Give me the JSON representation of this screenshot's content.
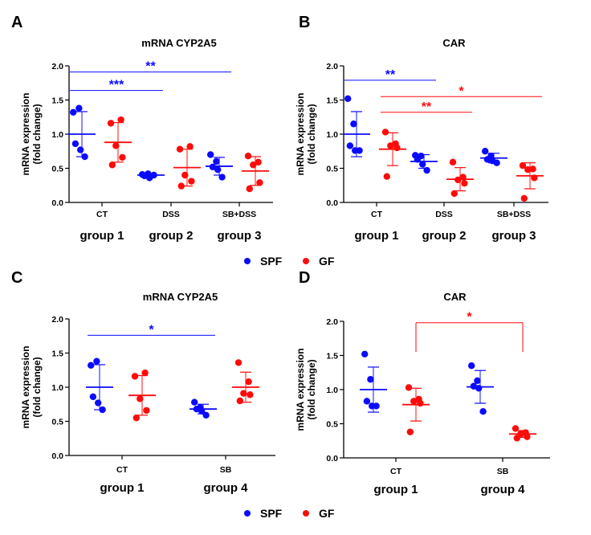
{
  "legend": {
    "items": [
      {
        "label": "SPF",
        "color": "#0a0aff"
      },
      {
        "label": "GF",
        "color": "#ff0a0a"
      }
    ]
  },
  "chart_data": [
    {
      "panel": "A",
      "type": "scatter",
      "title": "mRNA CYP2A5",
      "ylabel": [
        "mRNA expression",
        "(fold change)"
      ],
      "ylim": [
        0,
        2.0
      ],
      "yticks": [
        "0.0",
        "0.5",
        "1.0",
        "1.5",
        "2.0"
      ],
      "categories": [
        "CT",
        "DSS",
        "SB+DSS"
      ],
      "groups": [
        "group 1",
        "group 2",
        "group 3"
      ],
      "series": [
        {
          "name": "SPF",
          "color": "#0a0aff",
          "points": [
            [
              1.32,
              1.38,
              0.86,
              0.77,
              0.67
            ],
            [
              0.41,
              0.42,
              0.39,
              0.36,
              0.4
            ],
            [
              0.7,
              0.6,
              0.52,
              0.48,
              0.37
            ]
          ],
          "mean": [
            1.0,
            0.4,
            0.53
          ],
          "sd": [
            0.33,
            0.02,
            0.13
          ]
        },
        {
          "name": "GF",
          "color": "#ff0a0a",
          "points": [
            [
              1.16,
              1.21,
              0.83,
              0.66,
              0.55
            ],
            [
              0.78,
              0.82,
              0.4,
              0.31,
              0.24
            ],
            [
              0.68,
              0.59,
              0.55,
              0.29,
              0.2
            ]
          ],
          "mean": [
            0.88,
            0.51,
            0.46
          ],
          "sd": [
            0.29,
            0.27,
            0.21
          ]
        }
      ],
      "significance": [
        {
          "label": "**",
          "from": [
            0,
            "SPF"
          ],
          "to": [
            2,
            "SPF"
          ],
          "y": 1.91,
          "color": "#0a0aff"
        },
        {
          "label": "***",
          "from": [
            0,
            "SPF"
          ],
          "to": [
            1,
            "SPF"
          ],
          "y": 1.64,
          "color": "#0a0aff"
        }
      ]
    },
    {
      "panel": "B",
      "type": "scatter",
      "title": "CAR",
      "ylabel": [
        "mRNA expression",
        "(fold change)"
      ],
      "ylim": [
        0,
        2.0
      ],
      "yticks": [
        "0.0",
        "0.5",
        "1.0",
        "1.5",
        "2.0"
      ],
      "categories": [
        "CT",
        "DSS",
        "SB+DSS"
      ],
      "groups": [
        "group 1",
        "group 2",
        "group 3"
      ],
      "series": [
        {
          "name": "SPF",
          "color": "#0a0aff",
          "points": [
            [
              1.52,
              1.15,
              0.83,
              0.76,
              0.76
            ],
            [
              0.69,
              0.68,
              0.63,
              0.56,
              0.47
            ],
            [
              0.75,
              0.68,
              0.63,
              0.61,
              0.58
            ]
          ],
          "mean": [
            1.0,
            0.6,
            0.65
          ],
          "sd": [
            0.33,
            0.1,
            0.07
          ]
        },
        {
          "name": "GF",
          "color": "#ff0a0a",
          "points": [
            [
              1.03,
              0.86,
              0.83,
              0.8,
              0.38
            ],
            [
              0.59,
              0.37,
              0.33,
              0.28,
              0.13
            ],
            [
              0.54,
              0.49,
              0.48,
              0.36,
              0.06
            ]
          ],
          "mean": [
            0.78,
            0.34,
            0.39
          ],
          "sd": [
            0.24,
            0.17,
            0.19
          ]
        }
      ],
      "significance": [
        {
          "label": "**",
          "from": [
            0,
            "SPF"
          ],
          "to": [
            1,
            "SPF"
          ],
          "y": 1.79,
          "color": "#0a0aff"
        },
        {
          "label": "*",
          "from": [
            0,
            "GF"
          ],
          "to": [
            2,
            "GF"
          ],
          "y": 1.55,
          "color": "#ff0a0a"
        },
        {
          "label": "**",
          "from": [
            0,
            "GF"
          ],
          "to": [
            1,
            "GF"
          ],
          "y": 1.32,
          "color": "#ff0a0a"
        }
      ]
    },
    {
      "panel": "C",
      "type": "scatter",
      "title": "mRNA CYP2A5",
      "ylabel": [
        "mRNA expression",
        "(fold change)"
      ],
      "ylim": [
        0,
        2.0
      ],
      "yticks": [
        "0.0",
        "0.5",
        "1.0",
        "1.5",
        "2.0"
      ],
      "categories": [
        "CT",
        "SB"
      ],
      "groups": [
        "group 1",
        "group 4"
      ],
      "series": [
        {
          "name": "SPF",
          "color": "#0a0aff",
          "points": [
            [
              1.32,
              1.38,
              0.86,
              0.77,
              0.67
            ],
            [
              0.78,
              0.7,
              0.68,
              0.65,
              0.59
            ]
          ],
          "mean": [
            1.0,
            0.68
          ],
          "sd": [
            0.33,
            0.07
          ]
        },
        {
          "name": "GF",
          "color": "#ff0a0a",
          "points": [
            [
              1.16,
              1.21,
              0.83,
              0.66,
              0.55
            ],
            [
              1.36,
              1.08,
              0.91,
              0.89,
              0.8
            ]
          ],
          "mean": [
            0.88,
            1.0
          ],
          "sd": [
            0.29,
            0.22
          ]
        }
      ],
      "significance": [
        {
          "label": "*",
          "from": [
            0,
            "SPF"
          ],
          "to": [
            1,
            "SPF"
          ],
          "y": 1.76,
          "color": "#0a0aff"
        }
      ]
    },
    {
      "panel": "D",
      "type": "scatter",
      "title": "CAR",
      "ylabel": [
        "mRNA expression",
        "(fold change)"
      ],
      "ylim": [
        0,
        2.0
      ],
      "yticks": [
        "0.0",
        "0.5",
        "1.0",
        "1.5",
        "2.0"
      ],
      "categories": [
        "CT",
        "SB"
      ],
      "groups": [
        "group 1",
        "group 4"
      ],
      "series": [
        {
          "name": "SPF",
          "color": "#0a0aff",
          "points": [
            [
              1.52,
              1.15,
              0.83,
              0.76,
              0.76
            ],
            [
              1.35,
              1.13,
              1.05,
              1.02,
              0.68
            ]
          ],
          "mean": [
            1.0,
            1.04
          ],
          "sd": [
            0.33,
            0.24
          ]
        },
        {
          "name": "GF",
          "color": "#ff0a0a",
          "points": [
            [
              1.03,
              0.86,
              0.83,
              0.8,
              0.38
            ],
            [
              0.43,
              0.37,
              0.35,
              0.31,
              0.29
            ]
          ],
          "mean": [
            0.78,
            0.35
          ],
          "sd": [
            0.24,
            0.05
          ]
        }
      ],
      "significance": [
        {
          "label": "*",
          "from": [
            0,
            "GF"
          ],
          "to": [
            1,
            "GF"
          ],
          "y": 1.98,
          "drop_to": 1.55,
          "bracket": true,
          "color": "#ff0a0a"
        }
      ]
    }
  ]
}
